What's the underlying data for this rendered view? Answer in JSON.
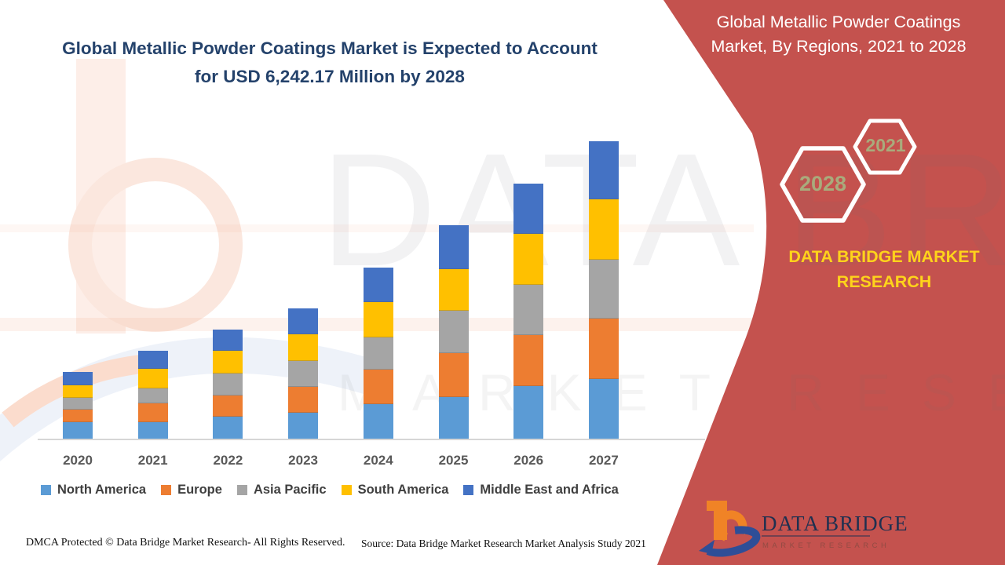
{
  "page": {
    "title_line1": "Global Metallic Powder Coatings Market is Expected to Account",
    "title_line2": "for USD 6,242.17 Million by 2028"
  },
  "right_panel": {
    "panel_color": "#c4524e",
    "heading_line1": "Global Metallic Powder Coatings",
    "heading_line2": "Market, By Regions, 2021 to 2028",
    "hexagon_front_year": "2028",
    "hexagon_back_year": "2021",
    "year_text_color": "#a9ab7c",
    "brand_line1": "DATA BRIDGE MARKET",
    "brand_line2": "RESEARCH",
    "brand_text_color": "#fed31b"
  },
  "watermark": {
    "line1": "DATA BRIDGE",
    "line2": "MARKET RESEARCH"
  },
  "logo": {
    "name": "DATA BRIDGE",
    "subtitle": "MARKET RESEARCH"
  },
  "footer": {
    "dmca": "DMCA Protected © Data Bridge Market Research- All Rights Reserved.",
    "source": "Source: Data Bridge Market Research Market Analysis Study 2021"
  },
  "chart_data": {
    "type": "bar",
    "stacked": true,
    "title": "Global Metallic Powder Coatings Market is Expected to Account for USD 6,242.17 Million by 2028",
    "xlabel": "",
    "ylabel": "",
    "y_axis_shown": false,
    "grid": false,
    "legend_position": "bottom",
    "note": "No numeric value axis is shown in the figure; series values are relative stack-segment heights estimated in pixels from the rendering.",
    "categories": [
      "2020",
      "2021",
      "2022",
      "2023",
      "2024",
      "2025",
      "2026",
      "2027"
    ],
    "series": [
      {
        "name": "North America",
        "color": "#5b9bd5",
        "values": [
          21,
          21,
          28,
          33,
          44,
          53,
          67,
          76
        ]
      },
      {
        "name": "Europe",
        "color": "#ed7d31",
        "values": [
          15,
          23,
          26,
          32,
          43,
          55,
          64,
          76
        ]
      },
      {
        "name": "Asia Pacific",
        "color": "#a5a5a5",
        "values": [
          14,
          18,
          27,
          32,
          40,
          53,
          63,
          74
        ]
      },
      {
        "name": "South America",
        "color": "#ffc000",
        "values": [
          15,
          24,
          28,
          33,
          44,
          52,
          64,
          76
        ]
      },
      {
        "name": "Middle East and Africa",
        "color": "#4472c4",
        "values": [
          16,
          22,
          26,
          32,
          43,
          55,
          63,
          73
        ]
      }
    ],
    "stack_totals": [
      81,
      108,
      135,
      162,
      214,
      268,
      321,
      375
    ]
  }
}
